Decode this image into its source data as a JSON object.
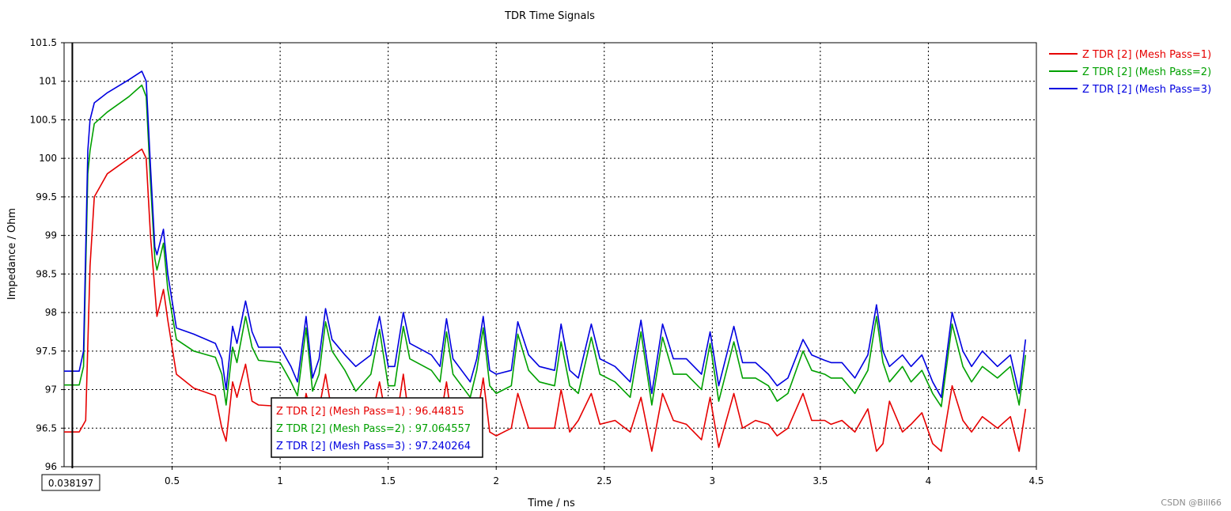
{
  "chart_data": {
    "type": "line",
    "title": "TDR Time Signals",
    "xlabel": "Time / ns",
    "ylabel": "Impedance / Ohm",
    "xlim": [
      0,
      4.5
    ],
    "ylim": [
      96,
      101.5
    ],
    "xticks": [
      "0.5",
      "1",
      "1.5",
      "2",
      "2.5",
      "3",
      "3.5",
      "4",
      "4.5"
    ],
    "yticks": [
      "96",
      "96.5",
      "97",
      "97.5",
      "98",
      "98.5",
      "99",
      "99.5",
      "100",
      "100.5",
      "101",
      "101.5"
    ],
    "grid": true,
    "legend_position": "top-right",
    "marker": {
      "x": 0.038197,
      "label": "0.038197"
    },
    "readout": [
      {
        "text": "Z TDR [2] (Mesh Pass=1) : 96.44815",
        "color": "#e60000"
      },
      {
        "text": "Z TDR [2] (Mesh Pass=2) : 97.064557",
        "color": "#00a000"
      },
      {
        "text": "Z TDR [2] (Mesh Pass=3) : 97.240264",
        "color": "#0000e0"
      }
    ],
    "series": [
      {
        "name": "Z TDR [2] (Mesh Pass=1)",
        "color": "#e60000",
        "points": [
          [
            0,
            96.45
          ],
          [
            0.07,
            96.45
          ],
          [
            0.1,
            96.6
          ],
          [
            0.12,
            98.6
          ],
          [
            0.14,
            99.5
          ],
          [
            0.2,
            99.8
          ],
          [
            0.3,
            100
          ],
          [
            0.36,
            100.12
          ],
          [
            0.38,
            100
          ],
          [
            0.4,
            99
          ],
          [
            0.42,
            98.3
          ],
          [
            0.43,
            97.95
          ],
          [
            0.46,
            98.3
          ],
          [
            0.48,
            97.9
          ],
          [
            0.52,
            97.2
          ],
          [
            0.6,
            97.02
          ],
          [
            0.7,
            96.92
          ],
          [
            0.73,
            96.5
          ],
          [
            0.75,
            96.33
          ],
          [
            0.78,
            97.1
          ],
          [
            0.8,
            96.9
          ],
          [
            0.84,
            97.33
          ],
          [
            0.87,
            96.85
          ],
          [
            0.9,
            96.8
          ],
          [
            1.02,
            96.78
          ],
          [
            1.05,
            96.7
          ],
          [
            1.08,
            96.5
          ],
          [
            1.1,
            96.55
          ],
          [
            1.12,
            96.95
          ],
          [
            1.15,
            96.6
          ],
          [
            1.18,
            96.75
          ],
          [
            1.21,
            97.2
          ],
          [
            1.24,
            96.7
          ],
          [
            1.35,
            96.45
          ],
          [
            1.42,
            96.6
          ],
          [
            1.46,
            97.1
          ],
          [
            1.5,
            96.5
          ],
          [
            1.53,
            96.45
          ],
          [
            1.57,
            97.2
          ],
          [
            1.6,
            96.55
          ],
          [
            1.7,
            96.55
          ],
          [
            1.74,
            96.6
          ],
          [
            1.77,
            97.1
          ],
          [
            1.8,
            96.5
          ],
          [
            1.88,
            96.5
          ],
          [
            1.91,
            96.6
          ],
          [
            1.94,
            97.15
          ],
          [
            1.97,
            96.45
          ],
          [
            2,
            96.4
          ],
          [
            2.07,
            96.5
          ],
          [
            2.1,
            96.95
          ],
          [
            2.15,
            96.5
          ],
          [
            2.2,
            96.5
          ],
          [
            2.27,
            96.5
          ],
          [
            2.3,
            97
          ],
          [
            2.34,
            96.45
          ],
          [
            2.38,
            96.6
          ],
          [
            2.44,
            96.95
          ],
          [
            2.48,
            96.55
          ],
          [
            2.55,
            96.6
          ],
          [
            2.62,
            96.45
          ],
          [
            2.67,
            96.9
          ],
          [
            2.72,
            96.2
          ],
          [
            2.77,
            96.95
          ],
          [
            2.82,
            96.6
          ],
          [
            2.88,
            96.55
          ],
          [
            2.95,
            96.35
          ],
          [
            2.99,
            96.9
          ],
          [
            3.03,
            96.25
          ],
          [
            3.1,
            96.95
          ],
          [
            3.14,
            96.5
          ],
          [
            3.2,
            96.6
          ],
          [
            3.26,
            96.55
          ],
          [
            3.3,
            96.4
          ],
          [
            3.35,
            96.5
          ],
          [
            3.42,
            96.95
          ],
          [
            3.46,
            96.6
          ],
          [
            3.52,
            96.6
          ],
          [
            3.55,
            96.55
          ],
          [
            3.6,
            96.6
          ],
          [
            3.66,
            96.45
          ],
          [
            3.72,
            96.75
          ],
          [
            3.76,
            96.2
          ],
          [
            3.79,
            96.3
          ],
          [
            3.82,
            96.85
          ],
          [
            3.88,
            96.45
          ],
          [
            3.92,
            96.55
          ],
          [
            3.97,
            96.7
          ],
          [
            4.02,
            96.3
          ],
          [
            4.06,
            96.2
          ],
          [
            4.11,
            97.05
          ],
          [
            4.16,
            96.6
          ],
          [
            4.2,
            96.45
          ],
          [
            4.25,
            96.65
          ],
          [
            4.32,
            96.5
          ],
          [
            4.38,
            96.65
          ],
          [
            4.42,
            96.2
          ],
          [
            4.45,
            96.75
          ]
        ]
      },
      {
        "name": "Z TDR [2] (Mesh Pass=2)",
        "color": "#00a000",
        "points": [
          [
            0,
            97.06
          ],
          [
            0.07,
            97.06
          ],
          [
            0.09,
            97.3
          ],
          [
            0.11,
            99.8
          ],
          [
            0.12,
            100.1
          ],
          [
            0.14,
            100.45
          ],
          [
            0.2,
            100.6
          ],
          [
            0.3,
            100.8
          ],
          [
            0.36,
            100.95
          ],
          [
            0.38,
            100.8
          ],
          [
            0.4,
            99.7
          ],
          [
            0.42,
            98.7
          ],
          [
            0.43,
            98.55
          ],
          [
            0.46,
            98.9
          ],
          [
            0.48,
            98.3
          ],
          [
            0.52,
            97.65
          ],
          [
            0.6,
            97.5
          ],
          [
            0.7,
            97.42
          ],
          [
            0.73,
            97.2
          ],
          [
            0.75,
            96.8
          ],
          [
            0.78,
            97.55
          ],
          [
            0.8,
            97.35
          ],
          [
            0.84,
            97.95
          ],
          [
            0.87,
            97.55
          ],
          [
            0.9,
            97.38
          ],
          [
            1,
            97.35
          ],
          [
            1.05,
            97.1
          ],
          [
            1.08,
            96.92
          ],
          [
            1.12,
            97.8
          ],
          [
            1.15,
            96.98
          ],
          [
            1.18,
            97.2
          ],
          [
            1.21,
            97.88
          ],
          [
            1.24,
            97.5
          ],
          [
            1.3,
            97.25
          ],
          [
            1.35,
            96.98
          ],
          [
            1.42,
            97.2
          ],
          [
            1.46,
            97.78
          ],
          [
            1.5,
            97.05
          ],
          [
            1.53,
            97.05
          ],
          [
            1.57,
            97.82
          ],
          [
            1.6,
            97.4
          ],
          [
            1.7,
            97.25
          ],
          [
            1.74,
            97.1
          ],
          [
            1.77,
            97.75
          ],
          [
            1.8,
            97.2
          ],
          [
            1.88,
            96.9
          ],
          [
            1.91,
            97.25
          ],
          [
            1.94,
            97.8
          ],
          [
            1.97,
            97.05
          ],
          [
            2,
            96.95
          ],
          [
            2.07,
            97.05
          ],
          [
            2.1,
            97.72
          ],
          [
            2.15,
            97.25
          ],
          [
            2.2,
            97.1
          ],
          [
            2.27,
            97.05
          ],
          [
            2.3,
            97.62
          ],
          [
            2.34,
            97.05
          ],
          [
            2.38,
            96.95
          ],
          [
            2.44,
            97.68
          ],
          [
            2.48,
            97.2
          ],
          [
            2.55,
            97.1
          ],
          [
            2.62,
            96.9
          ],
          [
            2.67,
            97.75
          ],
          [
            2.72,
            96.8
          ],
          [
            2.77,
            97.68
          ],
          [
            2.82,
            97.2
          ],
          [
            2.88,
            97.2
          ],
          [
            2.95,
            97.0
          ],
          [
            2.99,
            97.6
          ],
          [
            3.03,
            96.85
          ],
          [
            3.1,
            97.62
          ],
          [
            3.14,
            97.15
          ],
          [
            3.2,
            97.15
          ],
          [
            3.26,
            97.05
          ],
          [
            3.3,
            96.85
          ],
          [
            3.35,
            96.95
          ],
          [
            3.42,
            97.5
          ],
          [
            3.46,
            97.25
          ],
          [
            3.52,
            97.2
          ],
          [
            3.55,
            97.15
          ],
          [
            3.6,
            97.15
          ],
          [
            3.66,
            96.95
          ],
          [
            3.72,
            97.25
          ],
          [
            3.76,
            97.95
          ],
          [
            3.79,
            97.35
          ],
          [
            3.82,
            97.1
          ],
          [
            3.88,
            97.3
          ],
          [
            3.92,
            97.1
          ],
          [
            3.97,
            97.25
          ],
          [
            4.02,
            96.95
          ],
          [
            4.06,
            96.78
          ],
          [
            4.11,
            97.85
          ],
          [
            4.16,
            97.3
          ],
          [
            4.2,
            97.1
          ],
          [
            4.25,
            97.3
          ],
          [
            4.32,
            97.15
          ],
          [
            4.38,
            97.3
          ],
          [
            4.42,
            96.8
          ],
          [
            4.45,
            97.45
          ]
        ]
      },
      {
        "name": "Z TDR [2] (Mesh Pass=3)",
        "color": "#0000e0",
        "points": [
          [
            0,
            97.24
          ],
          [
            0.07,
            97.24
          ],
          [
            0.09,
            97.5
          ],
          [
            0.11,
            100.1
          ],
          [
            0.12,
            100.5
          ],
          [
            0.14,
            100.72
          ],
          [
            0.2,
            100.85
          ],
          [
            0.3,
            101.02
          ],
          [
            0.36,
            101.13
          ],
          [
            0.38,
            101
          ],
          [
            0.4,
            99.9
          ],
          [
            0.42,
            98.85
          ],
          [
            0.43,
            98.75
          ],
          [
            0.46,
            99.08
          ],
          [
            0.48,
            98.5
          ],
          [
            0.52,
            97.8
          ],
          [
            0.6,
            97.72
          ],
          [
            0.7,
            97.6
          ],
          [
            0.73,
            97.4
          ],
          [
            0.75,
            97.0
          ],
          [
            0.78,
            97.82
          ],
          [
            0.8,
            97.6
          ],
          [
            0.84,
            98.15
          ],
          [
            0.87,
            97.75
          ],
          [
            0.9,
            97.55
          ],
          [
            1,
            97.55
          ],
          [
            1.05,
            97.3
          ],
          [
            1.08,
            97.1
          ],
          [
            1.12,
            97.95
          ],
          [
            1.15,
            97.15
          ],
          [
            1.18,
            97.4
          ],
          [
            1.21,
            98.05
          ],
          [
            1.24,
            97.65
          ],
          [
            1.3,
            97.45
          ],
          [
            1.35,
            97.3
          ],
          [
            1.42,
            97.45
          ],
          [
            1.46,
            97.95
          ],
          [
            1.5,
            97.3
          ],
          [
            1.53,
            97.3
          ],
          [
            1.57,
            98.0
          ],
          [
            1.6,
            97.6
          ],
          [
            1.7,
            97.45
          ],
          [
            1.74,
            97.3
          ],
          [
            1.77,
            97.92
          ],
          [
            1.8,
            97.4
          ],
          [
            1.88,
            97.1
          ],
          [
            1.91,
            97.4
          ],
          [
            1.94,
            97.95
          ],
          [
            1.97,
            97.25
          ],
          [
            2,
            97.2
          ],
          [
            2.07,
            97.25
          ],
          [
            2.1,
            97.88
          ],
          [
            2.15,
            97.45
          ],
          [
            2.2,
            97.3
          ],
          [
            2.27,
            97.25
          ],
          [
            2.3,
            97.85
          ],
          [
            2.34,
            97.25
          ],
          [
            2.38,
            97.15
          ],
          [
            2.44,
            97.85
          ],
          [
            2.48,
            97.4
          ],
          [
            2.55,
            97.3
          ],
          [
            2.62,
            97.1
          ],
          [
            2.67,
            97.9
          ],
          [
            2.72,
            96.95
          ],
          [
            2.77,
            97.85
          ],
          [
            2.82,
            97.4
          ],
          [
            2.88,
            97.4
          ],
          [
            2.95,
            97.2
          ],
          [
            2.99,
            97.75
          ],
          [
            3.03,
            97.05
          ],
          [
            3.1,
            97.82
          ],
          [
            3.14,
            97.35
          ],
          [
            3.2,
            97.35
          ],
          [
            3.26,
            97.2
          ],
          [
            3.3,
            97.05
          ],
          [
            3.35,
            97.15
          ],
          [
            3.42,
            97.65
          ],
          [
            3.46,
            97.45
          ],
          [
            3.52,
            97.38
          ],
          [
            3.55,
            97.35
          ],
          [
            3.6,
            97.35
          ],
          [
            3.66,
            97.15
          ],
          [
            3.72,
            97.45
          ],
          [
            3.76,
            98.1
          ],
          [
            3.79,
            97.5
          ],
          [
            3.82,
            97.3
          ],
          [
            3.88,
            97.45
          ],
          [
            3.92,
            97.3
          ],
          [
            3.97,
            97.45
          ],
          [
            4.02,
            97.1
          ],
          [
            4.06,
            96.9
          ],
          [
            4.11,
            98.0
          ],
          [
            4.16,
            97.5
          ],
          [
            4.2,
            97.3
          ],
          [
            4.25,
            97.5
          ],
          [
            4.32,
            97.3
          ],
          [
            4.38,
            97.45
          ],
          [
            4.42,
            96.95
          ],
          [
            4.45,
            97.65
          ]
        ]
      }
    ]
  },
  "watermark": "CSDN @Bill66"
}
